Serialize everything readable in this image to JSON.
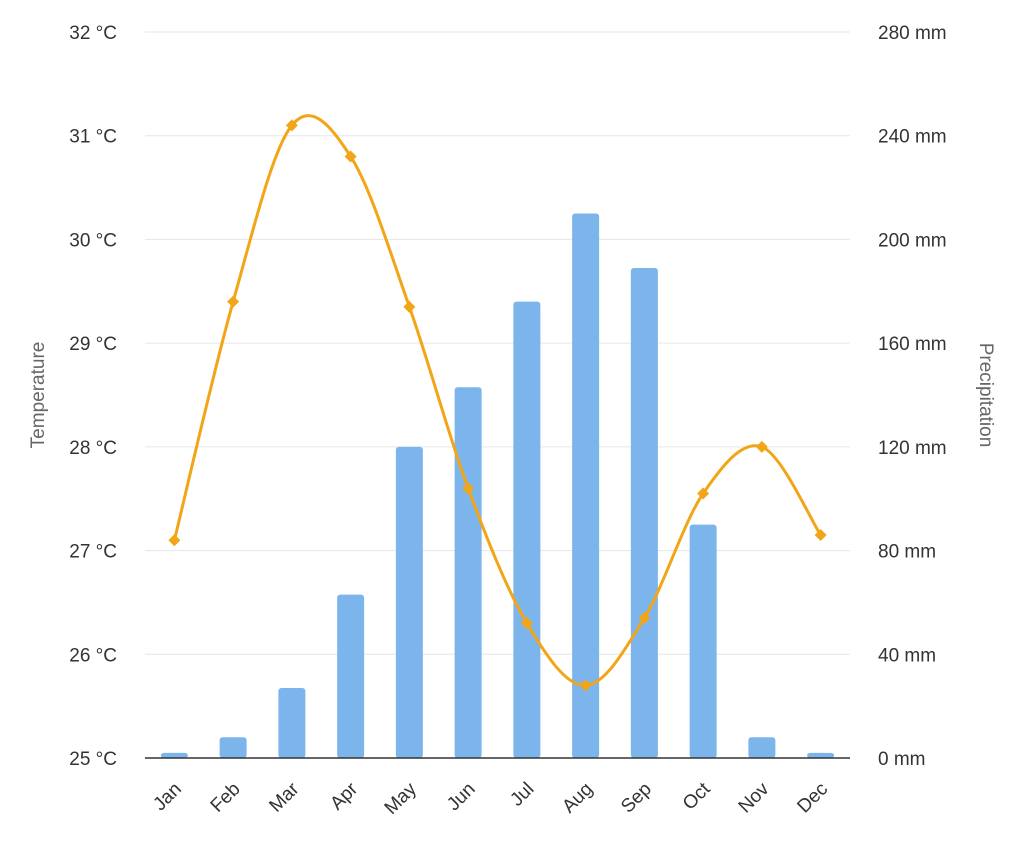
{
  "chart_data": {
    "type": "bar",
    "categories": [
      "Jan",
      "Feb",
      "Mar",
      "Apr",
      "May",
      "Jun",
      "Jul",
      "Aug",
      "Sep",
      "Oct",
      "Nov",
      "Dec"
    ],
    "series": [
      {
        "type": "bar",
        "axis": "right",
        "values": [
          2,
          8,
          27,
          63,
          120,
          143,
          176,
          210,
          189,
          90,
          8,
          2
        ],
        "color": "#7cb5ec"
      },
      {
        "type": "line",
        "axis": "left",
        "smooth": true,
        "marker": "diamond",
        "values": [
          27.1,
          29.4,
          31.1,
          30.8,
          29.35,
          27.6,
          26.3,
          25.7,
          26.35,
          27.55,
          28.0,
          27.15
        ],
        "color": "#f2a516"
      }
    ],
    "title": "",
    "ylabel_left": "Temperature",
    "ylabel_right": "Precipitation",
    "ylim_left": [
      25,
      32
    ],
    "ylim_right": [
      0,
      280
    ],
    "yticks_left": [
      "25 °C",
      "26 °C",
      "27 °C",
      "28 °C",
      "29 °C",
      "30 °C",
      "31 °C",
      "32 °C"
    ],
    "yticks_right": [
      "0 mm",
      "40 mm",
      "80 mm",
      "120 mm",
      "160 mm",
      "200 mm",
      "240 mm",
      "280 mm"
    ],
    "grid": true,
    "legend": "none"
  }
}
